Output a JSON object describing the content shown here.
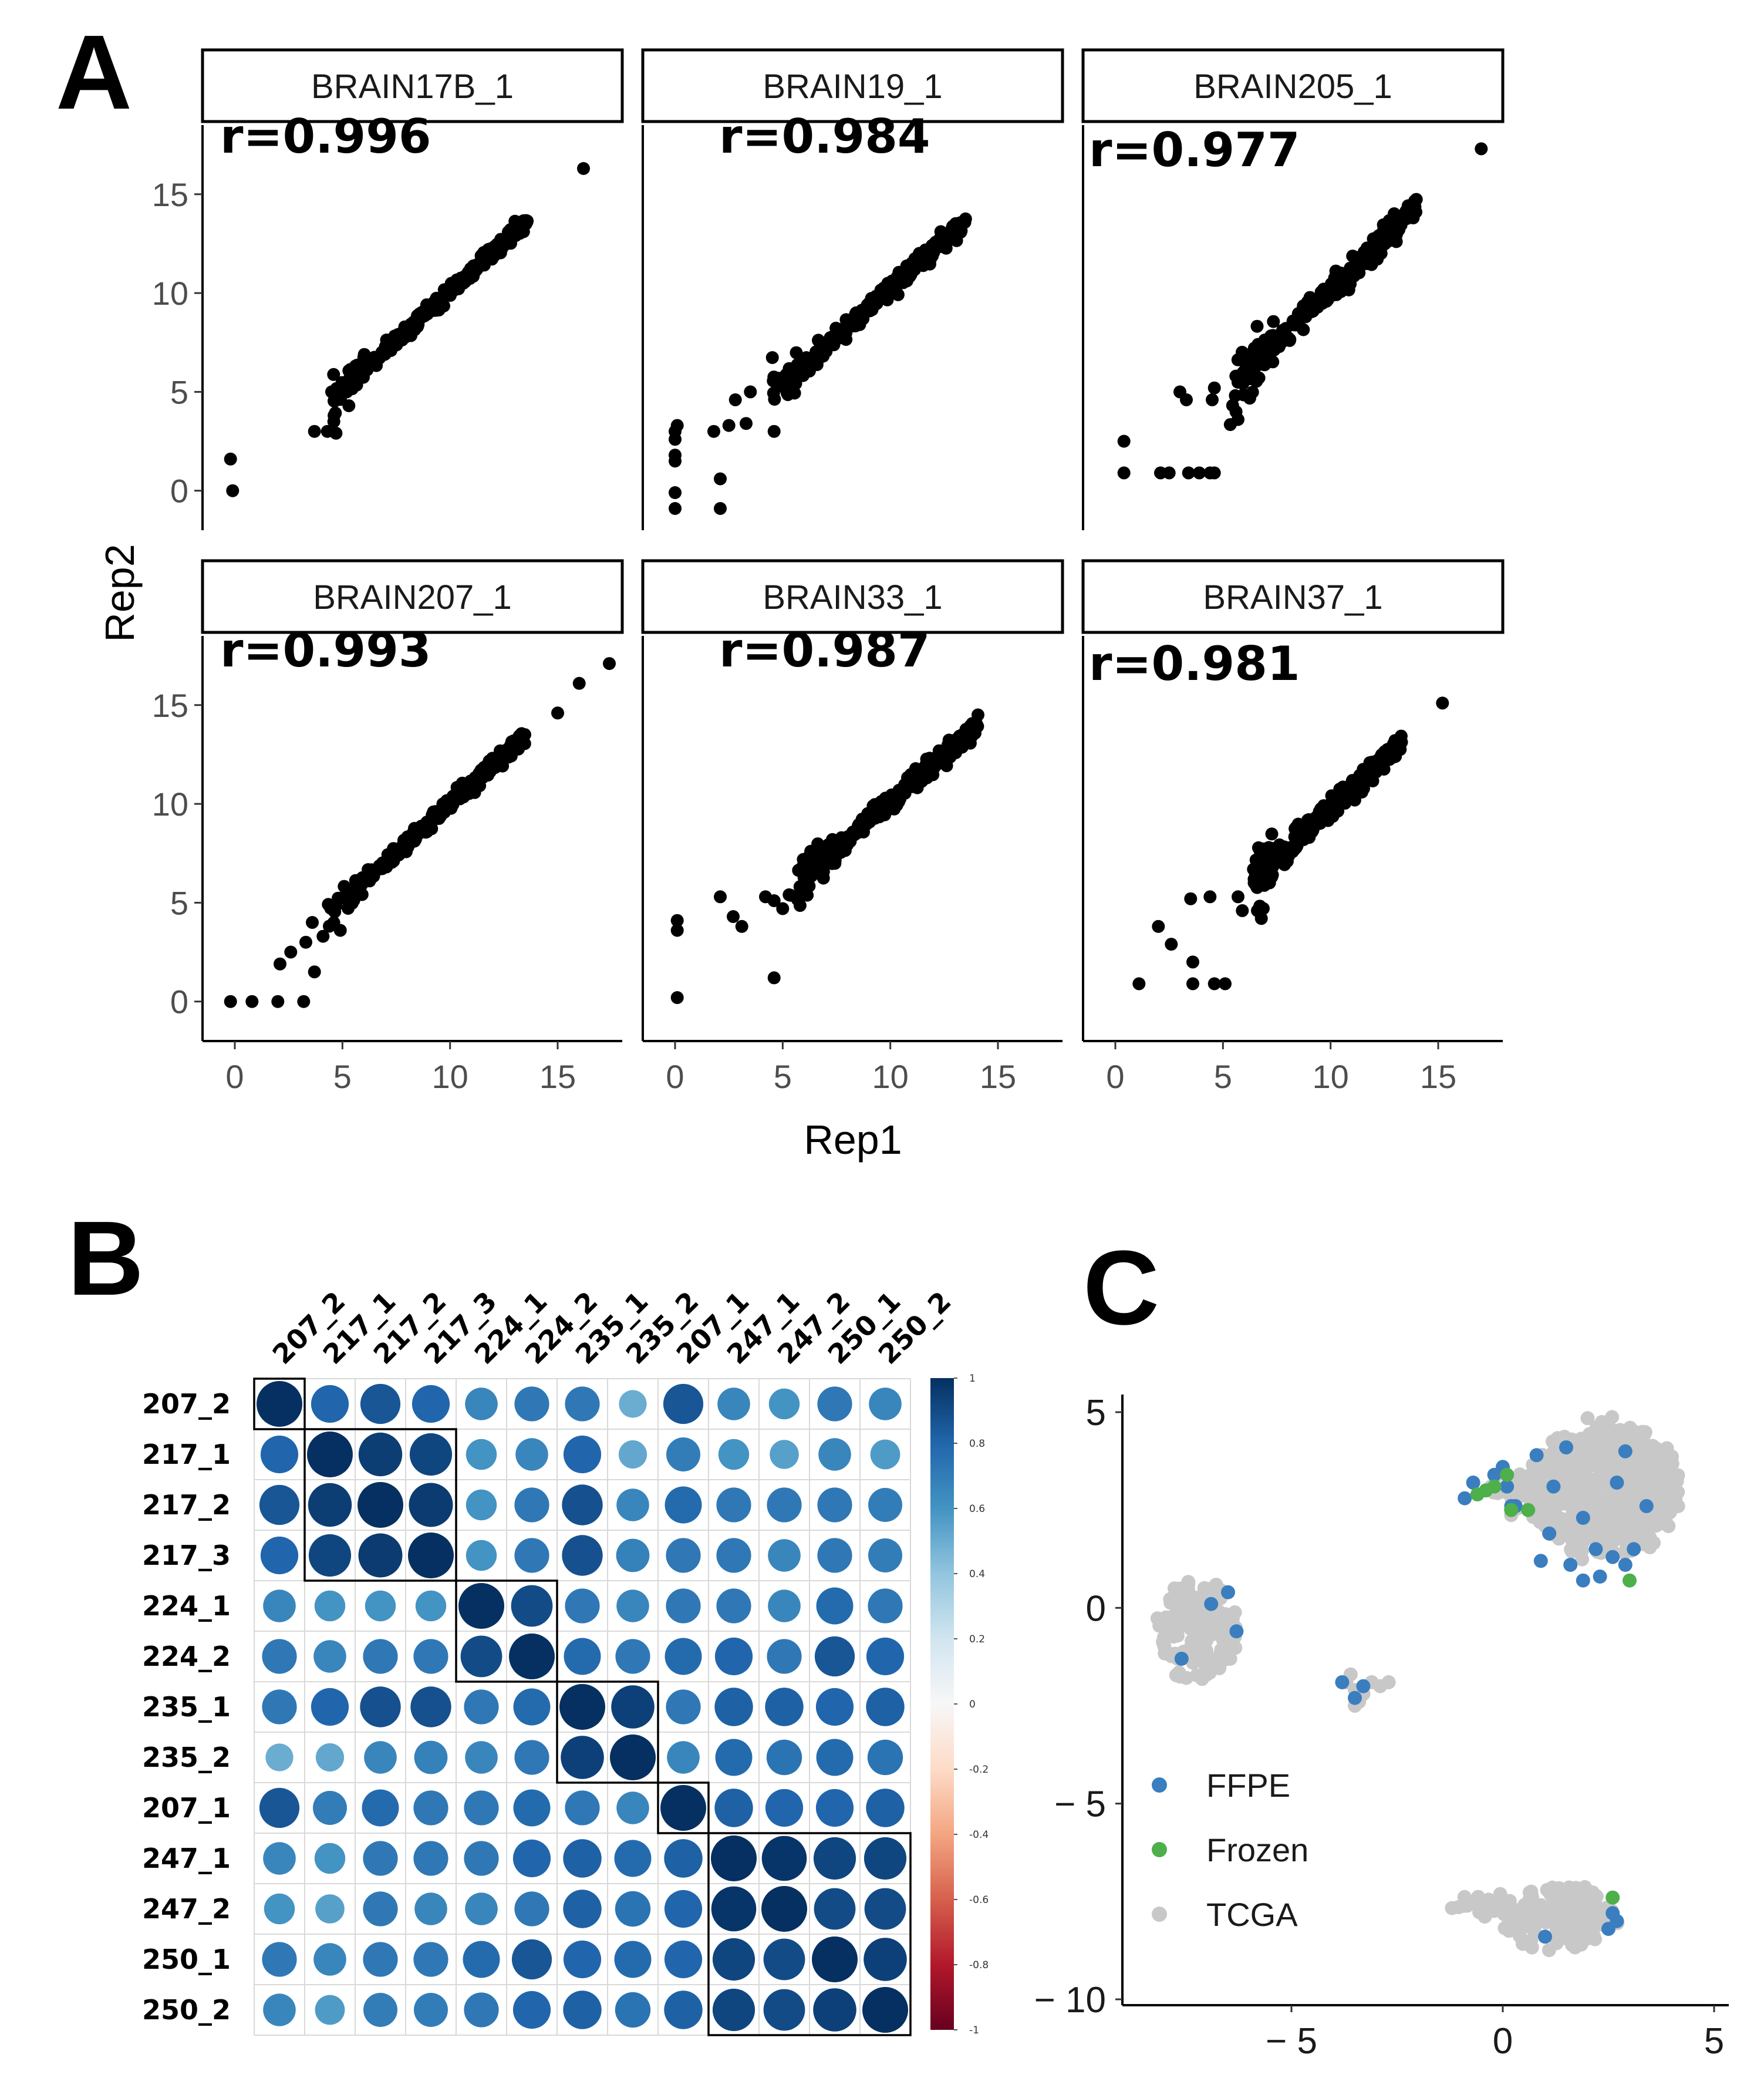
{
  "panels": {
    "a": "A",
    "b": "B",
    "c": "C"
  },
  "chart_data": [
    {
      "panel": "A",
      "type": "scatter",
      "xlabel": "Rep1",
      "ylabel": "Rep2",
      "xlim": [
        -1.5,
        18
      ],
      "ylim": [
        -2,
        18.5
      ],
      "xticks": [
        0,
        5,
        10,
        15
      ],
      "yticks": [
        0,
        5,
        10,
        15
      ],
      "facets": [
        {
          "title": "BRAIN17B_1",
          "r": "r=0.996",
          "outliers": [
            [
              -0.2,
              1.6
            ],
            [
              -0.1,
              0
            ],
            [
              3.7,
              3
            ],
            [
              4.3,
              3
            ],
            [
              4.6,
              3.5
            ],
            [
              4.5,
              5
            ],
            [
              5.2,
              5
            ],
            [
              5.3,
              4.3
            ],
            [
              16.2,
              16.3
            ]
          ],
          "line": {
            "x0": 4.5,
            "x1": 13.6,
            "slope": 1.0,
            "intercept": 0.1,
            "spread": 0.18
          }
        },
        {
          "title": "BRAIN19_1",
          "r": "r=0.984",
          "outliers": [
            [
              0,
              3
            ],
            [
              0,
              2.6
            ],
            [
              0,
              1.8
            ],
            [
              0,
              1.5
            ],
            [
              0,
              -0.1
            ],
            [
              0,
              -0.9
            ],
            [
              2.1,
              -0.9
            ],
            [
              2.1,
              0.6
            ],
            [
              0.1,
              3.3
            ],
            [
              1.8,
              3
            ],
            [
              2.5,
              3.3
            ],
            [
              3.3,
              3.4
            ],
            [
              4.6,
              3
            ],
            [
              2.8,
              4.6
            ],
            [
              3.5,
              5
            ]
          ],
          "line": {
            "x0": 4.5,
            "x1": 13.5,
            "slope": 0.98,
            "intercept": 0.4,
            "spread": 0.22
          }
        },
        {
          "title": "BRAIN205_1",
          "r": "r=0.977",
          "outliers": [
            [
              0.4,
              2.5
            ],
            [
              0.4,
              0.9
            ],
            [
              2.1,
              0.9
            ],
            [
              2.5,
              0.9
            ],
            [
              3.4,
              0.9
            ],
            [
              3.9,
              0.9
            ],
            [
              4.4,
              0.9
            ],
            [
              4.6,
              0.9
            ],
            [
              3,
              5
            ],
            [
              3.3,
              4.6
            ],
            [
              4.5,
              4.6
            ],
            [
              4.6,
              5.2
            ],
            [
              5.7,
              3.6
            ],
            [
              5.6,
              5.8
            ],
            [
              17,
              17.3
            ]
          ],
          "line": {
            "x0": 5.3,
            "x1": 14,
            "slope": 1.08,
            "intercept": -0.7,
            "spread": 0.3
          }
        },
        {
          "title": "BRAIN207_1",
          "r": "r=0.993",
          "outliers": [
            [
              -0.2,
              0
            ],
            [
              0.8,
              0
            ],
            [
              2,
              0
            ],
            [
              3.2,
              0
            ],
            [
              2.1,
              1.9
            ],
            [
              2.6,
              2.5
            ],
            [
              3.3,
              3
            ],
            [
              3.7,
              1.5
            ],
            [
              3.6,
              4
            ],
            [
              4.1,
              3.3
            ],
            [
              4.9,
              3.6
            ],
            [
              15,
              14.6
            ],
            [
              16,
              16.1
            ],
            [
              17.4,
              17.1
            ]
          ],
          "line": {
            "x0": 4.3,
            "x1": 13.5,
            "slope": 1.0,
            "intercept": 0.0,
            "spread": 0.2
          }
        },
        {
          "title": "BRAIN33_1",
          "r": "r=0.987",
          "outliers": [
            [
              0.1,
              0.2
            ],
            [
              0.1,
              3.6
            ],
            [
              0.1,
              4.1
            ],
            [
              2.1,
              5.3
            ],
            [
              2.7,
              4.3
            ],
            [
              3.1,
              3.8
            ],
            [
              4.6,
              1.2
            ],
            [
              4.2,
              5.3
            ],
            [
              4.6,
              5.1
            ],
            [
              5,
              4.7
            ],
            [
              5.3,
              5.4
            ]
          ],
          "line": {
            "x0": 5.3,
            "x1": 14.1,
            "slope": 0.95,
            "intercept": 0.6,
            "spread": 0.25
          }
        },
        {
          "title": "BRAIN37_1",
          "r": "r=0.981",
          "outliers": [
            [
              1.1,
              0.9
            ],
            [
              2,
              3.8
            ],
            [
              2.6,
              2.9
            ],
            [
              3.6,
              2
            ],
            [
              3.6,
              0.9
            ],
            [
              4.6,
              0.9
            ],
            [
              5.1,
              0.9
            ],
            [
              3.5,
              5.2
            ],
            [
              4.4,
              5.3
            ],
            [
              5.7,
              5.3
            ],
            [
              5.9,
              4.6
            ],
            [
              6.6,
              4.6
            ],
            [
              6.8,
              5.9
            ],
            [
              15.2,
              15.1
            ]
          ],
          "line": {
            "x0": 6.4,
            "x1": 13.3,
            "slope": 1.0,
            "intercept": -0.2,
            "spread": 0.25
          }
        }
      ]
    },
    {
      "panel": "B",
      "type": "heatmap",
      "labels": [
        "207_2",
        "217_1",
        "217_2",
        "217_3",
        "224_1",
        "224_2",
        "235_1",
        "235_2",
        "207_1",
        "247_1",
        "247_2",
        "250_1",
        "250_2"
      ],
      "matrix": [
        [
          1.0,
          0.8,
          0.86,
          0.8,
          0.66,
          0.72,
          0.72,
          0.5,
          0.86,
          0.66,
          0.6,
          0.72,
          0.66
        ],
        [
          0.8,
          1.0,
          0.95,
          0.92,
          0.6,
          0.66,
          0.8,
          0.52,
          0.7,
          0.6,
          0.55,
          0.66,
          0.57
        ],
        [
          0.86,
          0.95,
          1.0,
          0.96,
          0.6,
          0.72,
          0.88,
          0.66,
          0.78,
          0.72,
          0.72,
          0.72,
          0.7
        ],
        [
          0.8,
          0.92,
          0.96,
          1.0,
          0.6,
          0.72,
          0.88,
          0.68,
          0.72,
          0.72,
          0.66,
          0.72,
          0.7
        ],
        [
          0.66,
          0.6,
          0.6,
          0.6,
          1.0,
          0.9,
          0.72,
          0.66,
          0.72,
          0.72,
          0.66,
          0.78,
          0.72
        ],
        [
          0.72,
          0.66,
          0.72,
          0.72,
          0.9,
          1.0,
          0.78,
          0.72,
          0.78,
          0.8,
          0.72,
          0.86,
          0.8
        ],
        [
          0.72,
          0.8,
          0.88,
          0.88,
          0.72,
          0.78,
          1.0,
          0.94,
          0.72,
          0.82,
          0.82,
          0.8,
          0.82
        ],
        [
          0.5,
          0.52,
          0.66,
          0.68,
          0.66,
          0.72,
          0.94,
          1.0,
          0.66,
          0.78,
          0.74,
          0.78,
          0.74
        ],
        [
          0.86,
          0.7,
          0.78,
          0.72,
          0.72,
          0.78,
          0.72,
          0.66,
          1.0,
          0.82,
          0.8,
          0.8,
          0.82
        ],
        [
          0.66,
          0.6,
          0.72,
          0.72,
          0.72,
          0.8,
          0.82,
          0.78,
          0.82,
          1.0,
          0.98,
          0.92,
          0.92
        ],
        [
          0.6,
          0.55,
          0.72,
          0.66,
          0.66,
          0.72,
          0.82,
          0.74,
          0.8,
          0.98,
          1.0,
          0.9,
          0.9
        ],
        [
          0.72,
          0.66,
          0.72,
          0.72,
          0.78,
          0.86,
          0.8,
          0.78,
          0.8,
          0.92,
          0.9,
          1.0,
          0.94
        ],
        [
          0.66,
          0.57,
          0.7,
          0.7,
          0.72,
          0.8,
          0.82,
          0.74,
          0.82,
          0.92,
          0.9,
          0.94,
          1.0
        ]
      ],
      "blocks": [
        [
          0,
          0
        ],
        [
          1,
          3
        ],
        [
          4,
          5
        ],
        [
          6,
          7
        ],
        [
          8,
          8
        ],
        [
          9,
          12
        ]
      ],
      "colorbar": {
        "ticks": [
          "1",
          "0.8",
          "0.6",
          "0.4",
          "0.2",
          "0",
          "-0.2",
          "-0.4",
          "-0.6",
          "-0.8",
          "-1"
        ],
        "range": [
          -1,
          1
        ]
      }
    },
    {
      "panel": "C",
      "type": "scatter",
      "xlim": [
        -9.2,
        5.6
      ],
      "ylim": [
        -10.1,
        5.6
      ],
      "xticks": [
        "− 5",
        "0",
        "5"
      ],
      "xtick_values": [
        -5,
        0,
        5
      ],
      "yticks": [
        "5",
        "0",
        "− 5",
        "− 10"
      ],
      "ytick_values": [
        5,
        0,
        -5,
        -10
      ],
      "legend": [
        {
          "label": "FFPE",
          "color": "#3a7ebf"
        },
        {
          "label": "Frozen",
          "color": "#4db04a"
        },
        {
          "label": "TCGA",
          "color": "#c8c8c8"
        }
      ],
      "clusters": [
        {
          "cx": 2.4,
          "cy": 3.0,
          "rx": 1.8,
          "ry": 1.7,
          "n": 460
        },
        {
          "cx": 0.6,
          "cy": 2.9,
          "rx": 0.9,
          "ry": 0.5,
          "n": 60
        },
        {
          "cx": -7.2,
          "cy": -0.6,
          "rx": 0.9,
          "ry": 1.3,
          "n": 150
        },
        {
          "cx": 1.3,
          "cy": -7.9,
          "rx": 1.4,
          "ry": 0.8,
          "n": 140
        },
        {
          "cx": -0.5,
          "cy": -7.6,
          "rx": 0.7,
          "ry": 0.15,
          "n": 30
        }
      ],
      "ffpe": [
        [
          -0.2,
          3.4
        ],
        [
          0,
          3.6
        ],
        [
          0.1,
          3.1
        ],
        [
          0.3,
          2.6
        ],
        [
          0.8,
          3.9
        ],
        [
          1.2,
          3.1
        ],
        [
          1.5,
          4.1
        ],
        [
          1.9,
          2.3
        ],
        [
          2.2,
          1.5
        ],
        [
          2.6,
          1.3
        ],
        [
          2.9,
          1.1
        ],
        [
          1.6,
          1.1
        ],
        [
          1.9,
          0.7
        ],
        [
          2.3,
          0.8
        ],
        [
          3.4,
          2.6
        ],
        [
          2.9,
          4.0
        ],
        [
          3.1,
          1.5
        ],
        [
          1.1,
          1.9
        ],
        [
          0.9,
          1.2
        ],
        [
          -0.7,
          3.2
        ],
        [
          -0.9,
          2.8
        ],
        [
          0.2,
          2.6
        ],
        [
          2.7,
          3.2
        ],
        [
          -7.6,
          -1.3
        ],
        [
          -6.9,
          0.1
        ],
        [
          -6.5,
          0.4
        ],
        [
          -6.3,
          -0.6
        ],
        [
          -3.8,
          -1.9
        ],
        [
          -3.5,
          -2.3
        ],
        [
          -3.3,
          -2.0
        ],
        [
          1.0,
          -8.4
        ],
        [
          2.6,
          -7.8
        ],
        [
          2.7,
          -8.0
        ],
        [
          2.5,
          -8.2
        ]
      ],
      "frozen": [
        [
          -0.6,
          2.9
        ],
        [
          -0.4,
          3.0
        ],
        [
          -0.2,
          3.1
        ],
        [
          0.1,
          3.4
        ],
        [
          0.2,
          2.5
        ],
        [
          0.6,
          2.5
        ],
        [
          3.0,
          0.7
        ],
        [
          2.6,
          -7.4
        ]
      ]
    }
  ]
}
